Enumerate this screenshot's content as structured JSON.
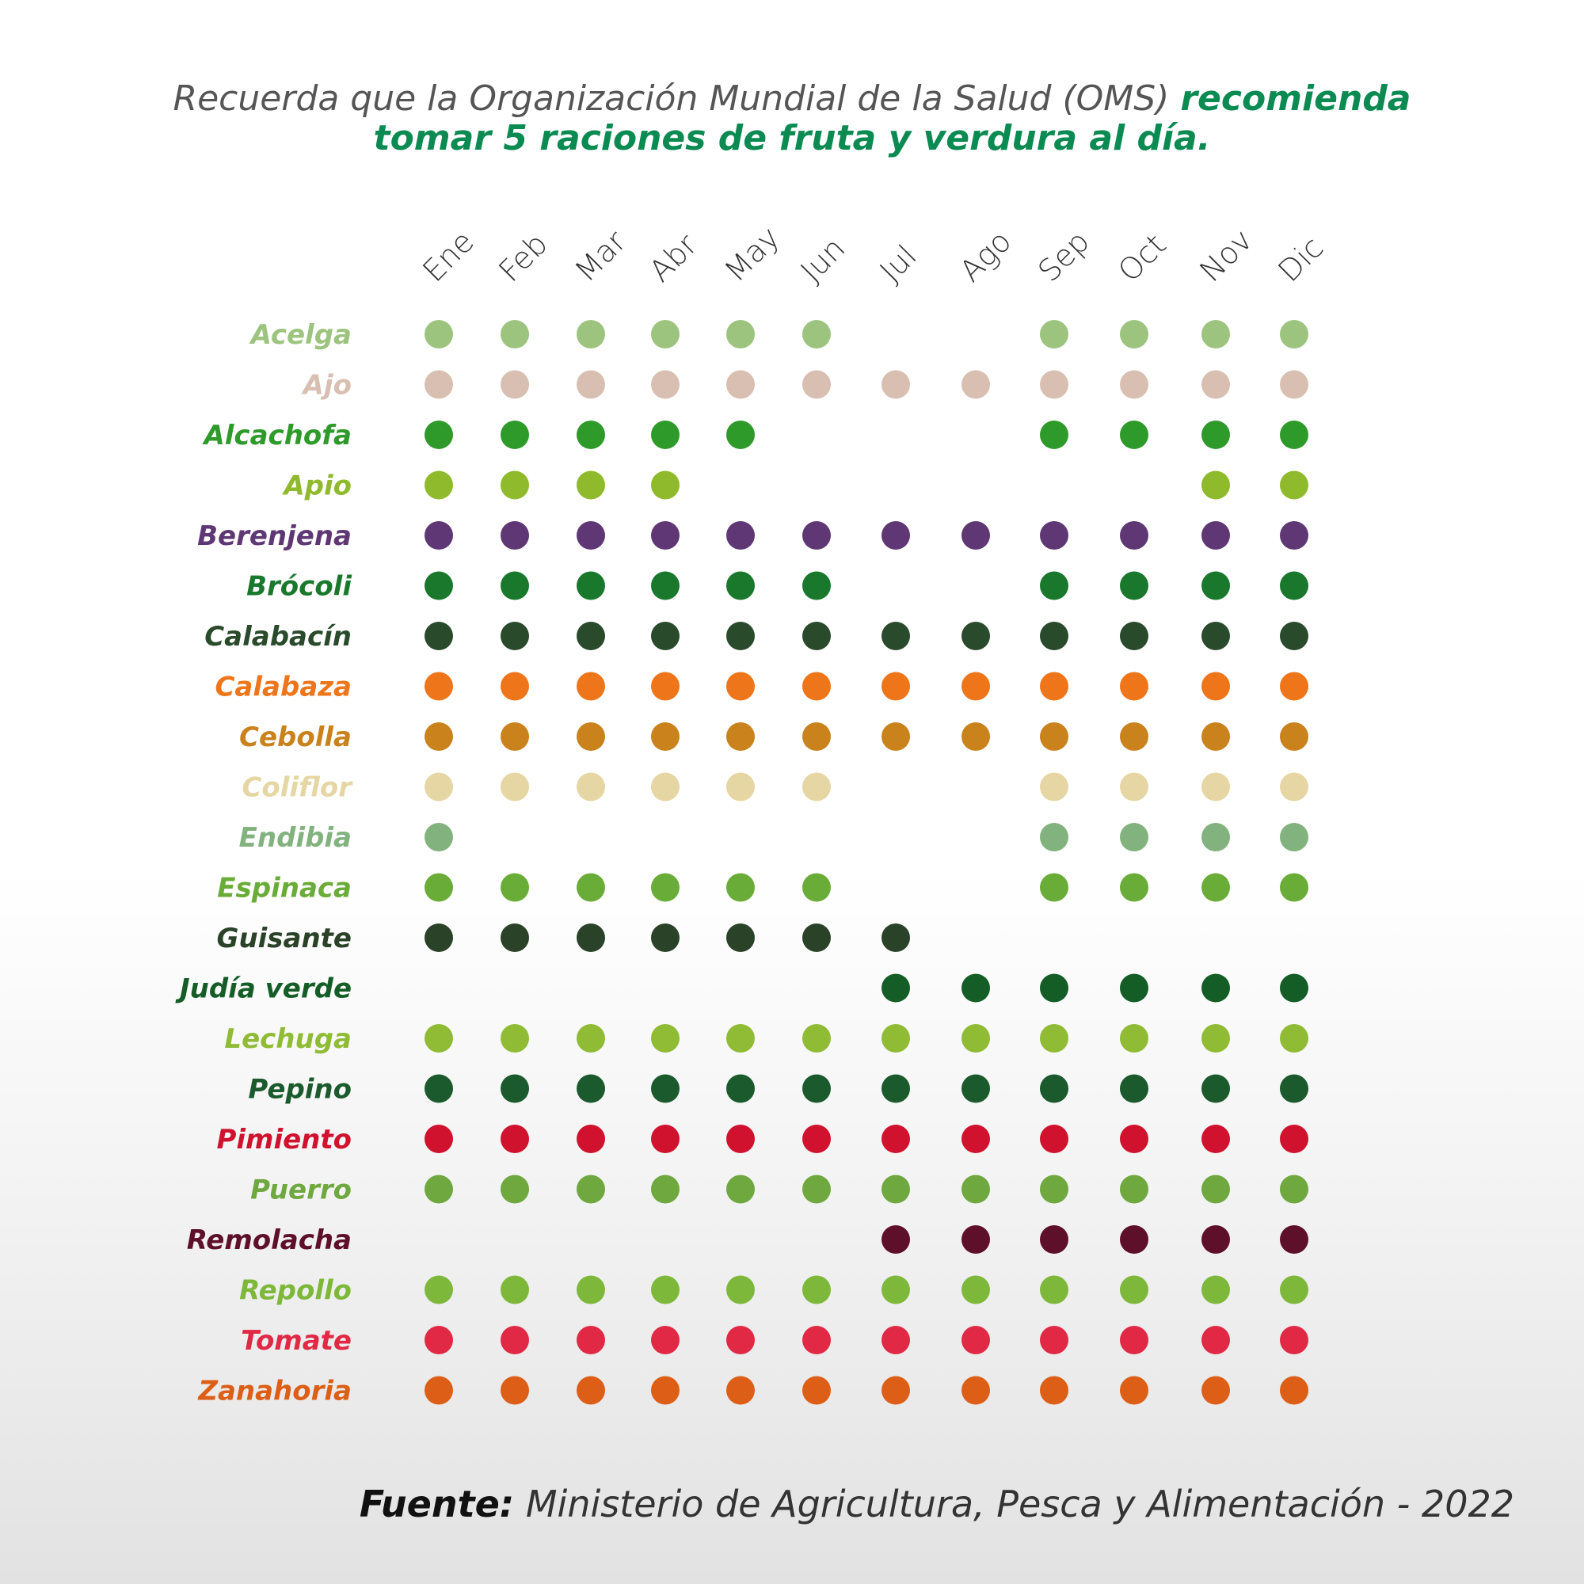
{
  "header": {
    "intro": "Recuerda que la Organización Mundial de la Salud (OMS)",
    "highlight1": "recomienda",
    "highlight2": "tomar 5 raciones de fruta y verdura al día."
  },
  "footer": {
    "label": "Fuente:",
    "text": "Ministerio de Agricultura, Pesca y Alimentación - 2022"
  },
  "chart_data": {
    "type": "table",
    "months": [
      "Ene",
      "Feb",
      "Mar",
      "Abr",
      "May",
      "Jun",
      "Jul",
      "Ago",
      "Sep",
      "Oct",
      "Nov",
      "Dic"
    ],
    "rows": [
      {
        "name": "Acelga",
        "color": "#9dc47e",
        "months": [
          1,
          1,
          1,
          1,
          1,
          1,
          0,
          0,
          1,
          1,
          1,
          1
        ]
      },
      {
        "name": "Ajo",
        "color": "#d8bfb1",
        "months": [
          1,
          1,
          1,
          1,
          1,
          1,
          1,
          1,
          1,
          1,
          1,
          1
        ]
      },
      {
        "name": "Alcachofa",
        "color": "#2e9a2a",
        "months": [
          1,
          1,
          1,
          1,
          1,
          0,
          0,
          0,
          1,
          1,
          1,
          1
        ]
      },
      {
        "name": "Apio",
        "color": "#8fba2c",
        "months": [
          1,
          1,
          1,
          1,
          0,
          0,
          0,
          0,
          0,
          0,
          1,
          1
        ]
      },
      {
        "name": "Berenjena",
        "color": "#5e3774",
        "months": [
          1,
          1,
          1,
          1,
          1,
          1,
          1,
          1,
          1,
          1,
          1,
          1
        ]
      },
      {
        "name": "Brócoli",
        "color": "#19782c",
        "months": [
          1,
          1,
          1,
          1,
          1,
          1,
          0,
          0,
          1,
          1,
          1,
          1
        ]
      },
      {
        "name": "Calabacín",
        "color": "#2a4a2c",
        "months": [
          1,
          1,
          1,
          1,
          1,
          1,
          1,
          1,
          1,
          1,
          1,
          1
        ]
      },
      {
        "name": "Calabaza",
        "color": "#ee7519",
        "months": [
          1,
          1,
          1,
          1,
          1,
          1,
          1,
          1,
          1,
          1,
          1,
          1
        ]
      },
      {
        "name": "Cebolla",
        "color": "#c9821c",
        "months": [
          1,
          1,
          1,
          1,
          1,
          1,
          1,
          1,
          1,
          1,
          1,
          1
        ]
      },
      {
        "name": "Coliflor",
        "color": "#e6d6a4",
        "months": [
          1,
          1,
          1,
          1,
          1,
          1,
          0,
          0,
          1,
          1,
          1,
          1
        ]
      },
      {
        "name": "Endibia",
        "color": "#82b27d",
        "months": [
          1,
          0,
          0,
          0,
          0,
          0,
          0,
          0,
          1,
          1,
          1,
          1
        ]
      },
      {
        "name": "Espinaca",
        "color": "#6aac38",
        "months": [
          1,
          1,
          1,
          1,
          1,
          1,
          0,
          0,
          1,
          1,
          1,
          1
        ]
      },
      {
        "name": "Guisante",
        "color": "#2a4227",
        "months": [
          1,
          1,
          1,
          1,
          1,
          1,
          1,
          0,
          0,
          0,
          0,
          0
        ]
      },
      {
        "name": "Judía verde",
        "color": "#155d26",
        "months": [
          0,
          0,
          0,
          0,
          0,
          0,
          1,
          1,
          1,
          1,
          1,
          1
        ]
      },
      {
        "name": "Lechuga",
        "color": "#8fbb35",
        "months": [
          1,
          1,
          1,
          1,
          1,
          1,
          1,
          1,
          1,
          1,
          1,
          1
        ]
      },
      {
        "name": "Pepino",
        "color": "#1a5a2c",
        "months": [
          1,
          1,
          1,
          1,
          1,
          1,
          1,
          1,
          1,
          1,
          1,
          1
        ]
      },
      {
        "name": "Pimiento",
        "color": "#d0122e",
        "months": [
          1,
          1,
          1,
          1,
          1,
          1,
          1,
          1,
          1,
          1,
          1,
          1
        ]
      },
      {
        "name": "Puerro",
        "color": "#6ea83e",
        "months": [
          1,
          1,
          1,
          1,
          1,
          1,
          1,
          1,
          1,
          1,
          1,
          1
        ]
      },
      {
        "name": "Remolacha",
        "color": "#5e0f2a",
        "months": [
          0,
          0,
          0,
          0,
          0,
          0,
          1,
          1,
          1,
          1,
          1,
          1
        ]
      },
      {
        "name": "Repollo",
        "color": "#7eb83a",
        "months": [
          1,
          1,
          1,
          1,
          1,
          1,
          1,
          1,
          1,
          1,
          1,
          1
        ]
      },
      {
        "name": "Tomate",
        "color": "#e12945",
        "months": [
          1,
          1,
          1,
          1,
          1,
          1,
          1,
          1,
          1,
          1,
          1,
          1
        ]
      },
      {
        "name": "Zanahoria",
        "color": "#dd5e16",
        "months": [
          1,
          1,
          1,
          1,
          1,
          1,
          1,
          1,
          1,
          1,
          1,
          1
        ]
      }
    ]
  }
}
